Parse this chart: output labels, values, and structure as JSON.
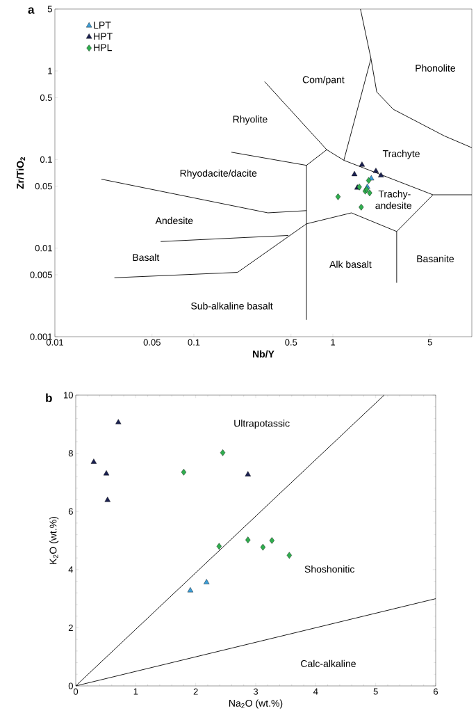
{
  "chart_data": [
    {
      "type": "scatter",
      "title": "a",
      "xlabel": "Nb/Y",
      "ylabel": "Zr/TiO$_{2}$",
      "log": "xy",
      "xlim": [
        0.01,
        10
      ],
      "ylim": [
        0.001,
        5
      ],
      "xticks": [
        0.01,
        0.05,
        0.1,
        0.5,
        1,
        5
      ],
      "yticks": [
        0.001,
        0.005,
        0.01,
        0.05,
        0.1,
        0.5,
        1,
        5
      ],
      "legend": "top left",
      "series": [
        {
          "name": "LPT",
          "marker": "triangle",
          "color": "#3d9fd8",
          "x": [
            1.89,
            1.77
          ],
          "values": [
            0.061,
            0.049
          ]
        },
        {
          "name": "HPT",
          "marker": "triangle",
          "color": "#1b2151",
          "x": [
            1.62,
            1.43,
            2.04,
            2.22,
            1.5
          ],
          "values": [
            0.087,
            0.068,
            0.074,
            0.066,
            0.048
          ]
        },
        {
          "name": "HPL",
          "marker": "diamond",
          "color": "#2fae4e",
          "x": [
            1.81,
            1.55,
            1.71,
            1.84,
            1.09,
            1.6,
            1.75
          ],
          "values": [
            0.058,
            0.049,
            0.044,
            0.042,
            0.038,
            0.029,
            0.046
          ]
        },
        {
          "type": "line",
          "color": "#000000",
          "x": [
            0.0216,
            0.341,
            0.646,
            null,
            0.186,
            0.646,
            null,
            0.646,
            0.646,
            0.904,
            null,
            0.323,
            0.904,
            1.2,
            5.25,
            10,
            null,
            1.2,
            1.88,
            null,
            1.58,
            1.88,
            2.07,
            2.73,
            6.33,
            10,
            null,
            0.0268,
            0.206,
            0.646,
            1.36,
            2.88,
            5.25,
            null,
            2.88,
            2.88,
            null,
            0.0577,
            0.479
          ],
          "values": [
            0.06,
            0.025,
            0.0265,
            null,
            0.121,
            0.086,
            null,
            0.00155,
            0.086,
            0.129,
            null,
            0.757,
            0.129,
            0.098,
            0.04,
            0.04,
            null,
            0.098,
            1.38,
            null,
            5,
            1.38,
            0.578,
            0.368,
            0.185,
            0.136,
            null,
            0.00463,
            0.00532,
            0.0188,
            0.025,
            0.0154,
            0.04,
            null,
            0.0154,
            0.00406,
            null,
            0.01186,
            0.0139
          ]
        }
      ],
      "annotations": [
        "Phonolite",
        "Com/pant",
        "Rhyolite",
        "Trachyte",
        "Rhyodacite/dacite",
        "Trachy-",
        "andesite",
        "Andesite",
        "Basalt",
        "Alk basalt",
        "Basanite",
        "Sub-alkaline basalt"
      ]
    },
    {
      "type": "scatter",
      "title": "b",
      "xlabel": "Na$_{2}$O (wt.%)",
      "ylabel": "K$_{2}$O (wt.%)",
      "xlim": [
        0,
        6
      ],
      "ylim": [
        0,
        10
      ],
      "xticks": [
        0,
        1,
        2,
        3,
        4,
        5,
        6
      ],
      "yticks": [
        0,
        2,
        4,
        6,
        8,
        10
      ],
      "series": [
        {
          "marker": "triangle",
          "color": "#3d9fd8",
          "x": [
            1.91,
            2.18
          ],
          "values": [
            3.28,
            3.56
          ]
        },
        {
          "marker": "triangle",
          "color": "#1b2151",
          "x": [
            0.71,
            0.3,
            0.51,
            0.53,
            2.87
          ],
          "values": [
            9.06,
            7.7,
            7.3,
            6.39,
            7.27
          ]
        },
        {
          "marker": "diamond",
          "color": "#2fae4e",
          "x": [
            1.8,
            2.45,
            2.39,
            2.87,
            3.12,
            3.27,
            3.56
          ],
          "values": [
            7.35,
            8.02,
            4.8,
            5.02,
            4.77,
            5.0,
            4.49
          ]
        },
        {
          "type": "line",
          "color": "#000000",
          "x": [
            5.14,
            0,
            6
          ],
          "values": [
            10,
            0,
            3
          ]
        }
      ],
      "annotations": [
        "Ultrapotassic",
        "Shoshonitic",
        "Calc-alkaline"
      ]
    }
  ]
}
